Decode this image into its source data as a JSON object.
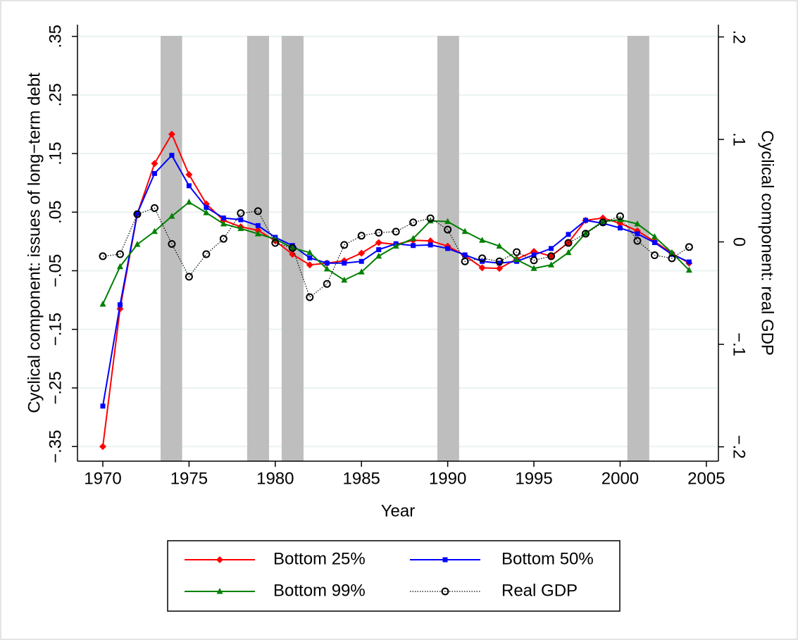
{
  "chart_data": {
    "type": "line",
    "x_label": "Year",
    "y_label": "Cyclical component: issues of long−term debt",
    "y2_label": "Cyclical component: real GDP",
    "x": [
      1970,
      1971,
      1972,
      1973,
      1974,
      1975,
      1976,
      1977,
      1978,
      1979,
      1980,
      1981,
      1982,
      1983,
      1984,
      1985,
      1986,
      1987,
      1988,
      1989,
      1990,
      1991,
      1992,
      1993,
      1994,
      1995,
      1996,
      1997,
      1998,
      1999,
      2000,
      2001,
      2002,
      2003,
      2004
    ],
    "xlim": [
      1968.53,
      2005.7
    ],
    "xticks": [
      1970,
      1975,
      1980,
      1985,
      1990,
      1995,
      2000,
      2005
    ],
    "ylim": [
      -0.375,
      0.37
    ],
    "yticks": [
      {
        "value": -0.35,
        "label": "−.35"
      },
      {
        "value": -0.25,
        "label": "−.25"
      },
      {
        "value": -0.15,
        "label": "−.15"
      },
      {
        "value": -0.05,
        "label": "−.05"
      },
      {
        "value": 0.05,
        "label": ".05"
      },
      {
        "value": 0.15,
        "label": ".15"
      },
      {
        "value": 0.25,
        "label": ".25"
      },
      {
        "value": 0.35,
        "label": ".35"
      }
    ],
    "y2lim": [
      -0.214,
      0.212
    ],
    "y2ticks": [
      {
        "value": -0.2,
        "label": "−.2"
      },
      {
        "value": -0.1,
        "label": "−.1"
      },
      0,
      {
        "value": 0.1,
        "label": ".1"
      },
      {
        "value": 0.2,
        "label": ".2"
      }
    ],
    "grid": true,
    "legend_position": "bottom",
    "shaded_periods": [
      [
        1973.35,
        1974.6
      ],
      [
        1978.37,
        1979.64
      ],
      [
        1980.37,
        1981.64
      ],
      [
        1989.4,
        1990.66
      ],
      [
        2000.42,
        2001.69
      ]
    ],
    "shade_color": "#bebebe",
    "series": [
      {
        "name": "Bottom 25%",
        "color": "#ff0000",
        "marker": "diamond",
        "values": [
          -0.35,
          -0.115,
          0.047,
          0.133,
          0.183,
          0.114,
          0.064,
          0.036,
          0.025,
          0.019,
          0.001,
          -0.022,
          -0.04,
          -0.037,
          -0.033,
          -0.02,
          -0.002,
          -0.005,
          0.002,
          0.001,
          -0.008,
          -0.024,
          -0.045,
          -0.046,
          -0.03,
          -0.017,
          -0.025,
          -0.002,
          0.036,
          0.04,
          0.031,
          0.018,
          0,
          -0.02,
          -0.037
        ]
      },
      {
        "name": "Bottom 50%",
        "color": "#0000ff",
        "marker": "square",
        "values": [
          -0.281,
          -0.108,
          0.048,
          0.116,
          0.147,
          0.095,
          0.058,
          0.04,
          0.037,
          0.027,
          0.007,
          -0.007,
          -0.028,
          -0.037,
          -0.037,
          -0.034,
          -0.014,
          -0.004,
          -0.007,
          -0.006,
          -0.012,
          -0.023,
          -0.034,
          -0.037,
          -0.034,
          -0.023,
          -0.012,
          0.012,
          0.036,
          0.031,
          0.023,
          0.013,
          -0.002,
          -0.022,
          -0.035
        ]
      },
      {
        "name": "Bottom 99%",
        "color": "#008000",
        "marker": "triangle",
        "values": [
          -0.107,
          -0.043,
          -0.005,
          0.017,
          0.043,
          0.067,
          0.049,
          0.03,
          0.022,
          0.013,
          0.004,
          -0.011,
          -0.019,
          -0.047,
          -0.066,
          -0.052,
          -0.025,
          -0.008,
          0.005,
          0.035,
          0.034,
          0.017,
          0.002,
          -0.008,
          -0.031,
          -0.046,
          -0.04,
          -0.019,
          0.014,
          0.034,
          0.037,
          0.03,
          0.008,
          -0.019,
          -0.049
        ]
      },
      {
        "name": "Real GDP",
        "color": "#000000",
        "marker": "circle",
        "dashed": true,
        "axis": "y2",
        "values": [
          -0.014,
          -0.012,
          0.027,
          0.033,
          -0.002,
          -0.034,
          -0.012,
          0.003,
          0.028,
          0.03,
          -0.001,
          -0.006,
          -0.054,
          -0.041,
          -0.003,
          0.006,
          0.009,
          0.01,
          0.019,
          0.023,
          0.012,
          -0.019,
          -0.016,
          -0.019,
          -0.01,
          -0.018,
          -0.014,
          -0.001,
          0.008,
          0.019,
          0.025,
          0.001,
          -0.013,
          -0.016,
          -0.005
        ]
      }
    ]
  }
}
